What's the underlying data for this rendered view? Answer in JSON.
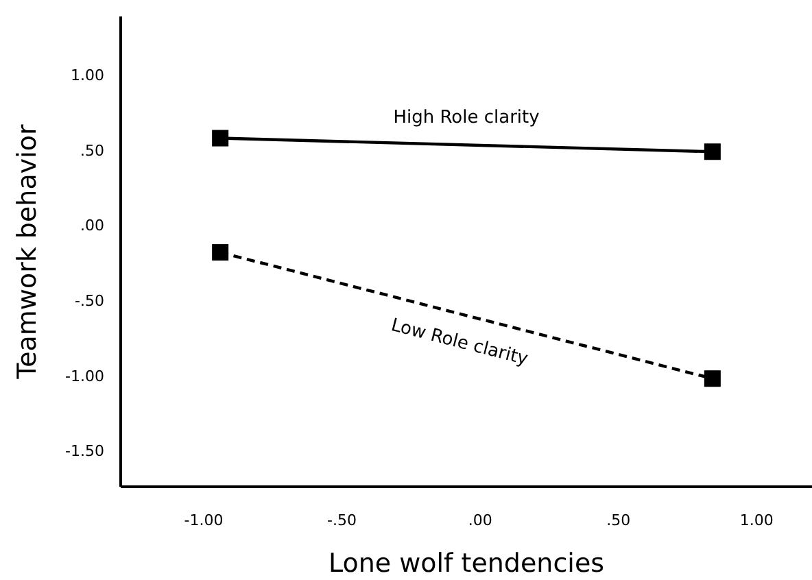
{
  "chart_data": {
    "type": "line",
    "xlabel": "Lone wolf tendencies",
    "ylabel": "Teamwork behavior",
    "x": [
      -0.94,
      0.84
    ],
    "series": [
      {
        "name": "High Role clarity",
        "color": "#000000",
        "values": [
          0.58,
          0.49
        ],
        "line_style": "solid"
      },
      {
        "name": "Low Role clarity",
        "color": "#000000",
        "values": [
          -0.18,
          -1.02
        ],
        "line_style": "dashed"
      }
    ],
    "marker": "square",
    "grid": false,
    "xlim": [
      -1.3,
      1.2
    ],
    "ylim": [
      -1.74,
      1.39
    ],
    "xticks": [
      {
        "value": -1,
        "label": "-1.00"
      },
      {
        "value": -0.5,
        "label": "-.50"
      },
      {
        "value": 0,
        "label": ".00"
      },
      {
        "value": 0.5,
        "label": ".50"
      },
      {
        "value": 1,
        "label": "1.00"
      }
    ],
    "yticks": [
      {
        "value": -1.5,
        "label": "-1.50"
      },
      {
        "value": -1,
        "label": "-1.00"
      },
      {
        "value": -0.5,
        "label": "-.50"
      },
      {
        "value": 0,
        "label": ".00"
      },
      {
        "value": 0.5,
        "label": ".50"
      },
      {
        "value": 1,
        "label": "1.00"
      }
    ]
  }
}
